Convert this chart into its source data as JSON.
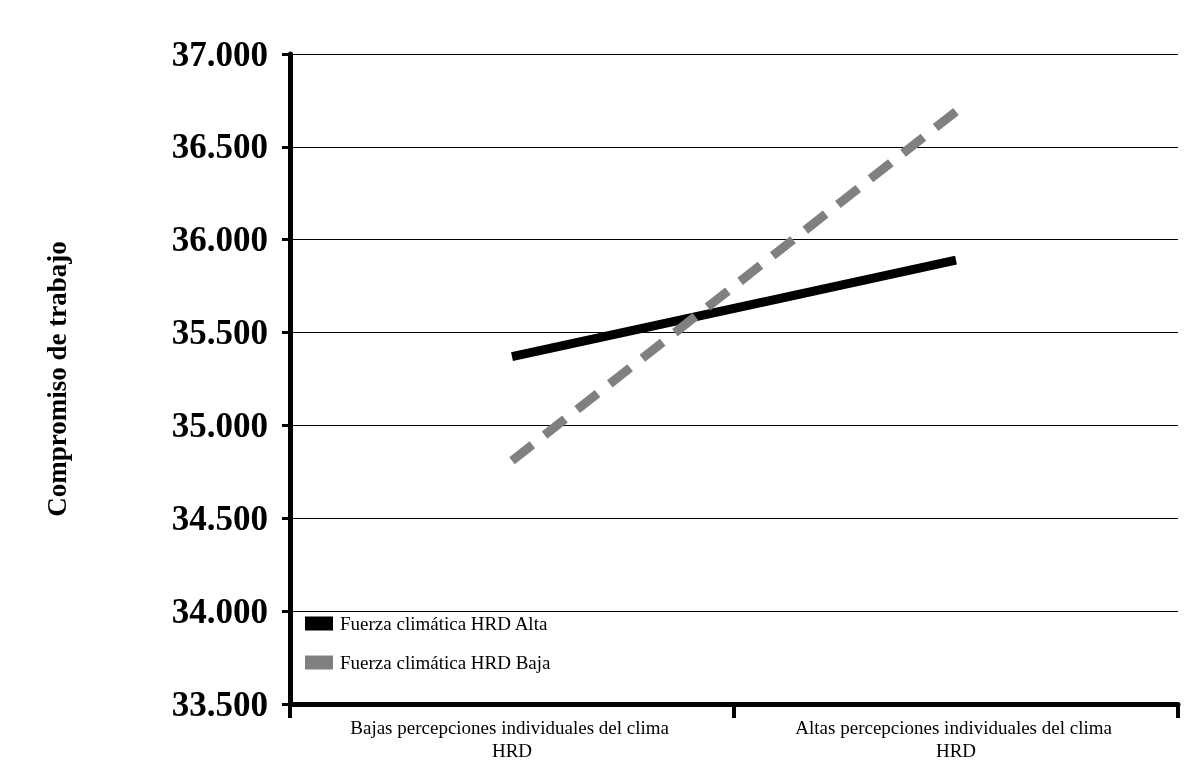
{
  "chart_data": {
    "type": "line",
    "ylabel": "Compromiso de trabajo",
    "categories": [
      "Bajas percepciones individuales del clima HRD",
      "Altas percepciones individuales del clima HRD"
    ],
    "series": [
      {
        "name": "Fuerza climática HRD Alta",
        "color": "#000000",
        "values": [
          35.37,
          35.89
        ],
        "line_style": "solid"
      },
      {
        "name": "Fuerza climática HRD Baja",
        "color": "#808080",
        "values": [
          34.81,
          36.69
        ],
        "line_style": "dashed"
      }
    ],
    "ylim": [
      33.5,
      37
    ],
    "yticks": [
      {
        "value": 33.5,
        "label": "33.500"
      },
      {
        "value": 34,
        "label": "34.000"
      },
      {
        "value": 34.5,
        "label": "34.500"
      },
      {
        "value": 35,
        "label": "35.000"
      },
      {
        "value": 35.5,
        "label": "35.500"
      },
      {
        "value": 36,
        "label": "36.000"
      },
      {
        "value": 36.5,
        "label": "36.500"
      },
      {
        "value": 37,
        "label": "37.000"
      }
    ],
    "grid": "y",
    "legend": "bottom left",
    "marker": "none"
  }
}
